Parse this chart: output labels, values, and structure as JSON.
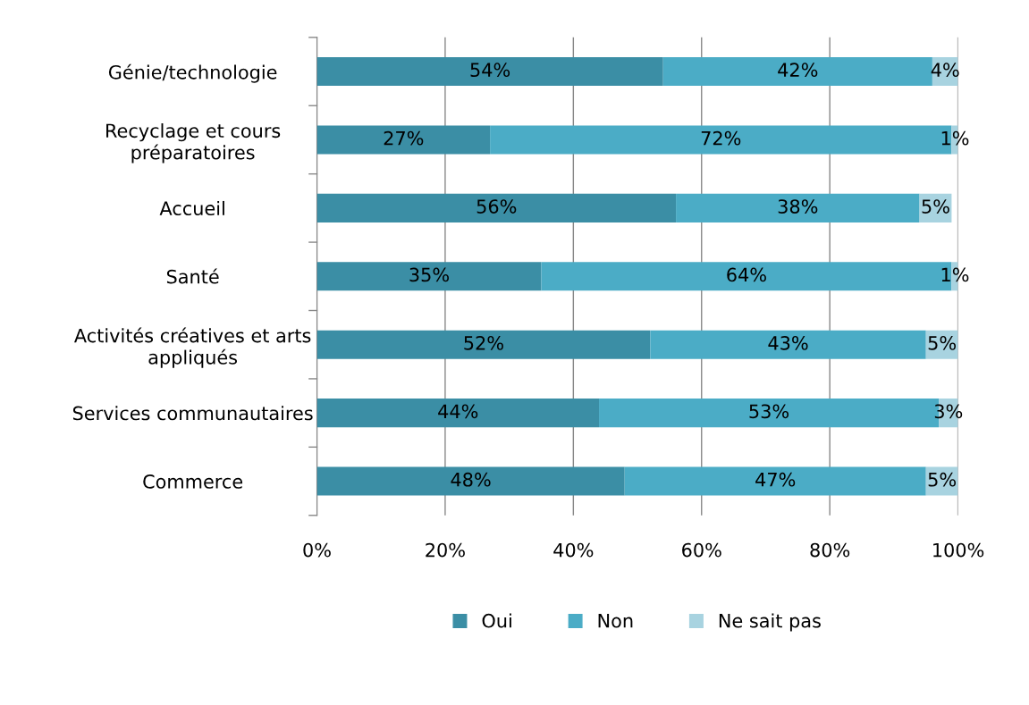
{
  "chart_data": {
    "type": "bar",
    "orientation": "horizontal",
    "stacked": true,
    "categories": [
      "Génie/technologie",
      "Recyclage et cours\npréparatoires",
      "Accueil",
      "Santé",
      "Activités créatives et arts\nappliqués",
      "Services communautaires",
      "Commerce"
    ],
    "series": [
      {
        "name": "Oui",
        "color": "#3b8ea5",
        "values": [
          54,
          27,
          56,
          35,
          52,
          44,
          48
        ],
        "value_labels": [
          "54%",
          "27%",
          "56%",
          "35%",
          "52%",
          "44%",
          "48%"
        ]
      },
      {
        "name": "Non",
        "color": "#4bacc6",
        "values": [
          42,
          72,
          38,
          64,
          43,
          53,
          47
        ],
        "value_labels": [
          "42%",
          "72%",
          "38%",
          "64%",
          "43%",
          "53%",
          "47%"
        ]
      },
      {
        "name": "Ne sait pas",
        "color": "#a8d3e0",
        "values": [
          4,
          1,
          5,
          1,
          5,
          3,
          5
        ],
        "value_labels": [
          "4%",
          "1%",
          "5%",
          "1%",
          "5%",
          "3%",
          "5%"
        ]
      }
    ],
    "xlim": [
      0,
      100
    ],
    "xticks": [
      {
        "value": 0,
        "label": "0%"
      },
      {
        "value": 20,
        "label": "20%"
      },
      {
        "value": 40,
        "label": "40%"
      },
      {
        "value": 60,
        "label": "60%"
      },
      {
        "value": 80,
        "label": "80%"
      },
      {
        "value": 100,
        "label": "100%"
      }
    ],
    "grid": "x",
    "legend": "bottom"
  }
}
